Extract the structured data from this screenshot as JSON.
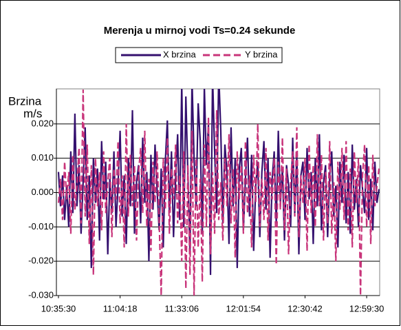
{
  "chart_data": {
    "type": "line",
    "title": "Merenja u mirnoj vodi Ts=0.24 sekunde",
    "y_label": [
      "Brzina",
      "m/s"
    ],
    "categories": [
      "10:35:30",
      null,
      null,
      null,
      null,
      null,
      null,
      null,
      null,
      null,
      null,
      null,
      null,
      null,
      null,
      null,
      null,
      null,
      null,
      null,
      null,
      null,
      null,
      null,
      null,
      null,
      null,
      null,
      null,
      null,
      "11:04:18",
      null,
      null,
      null,
      null,
      null,
      null,
      null,
      null,
      null,
      null,
      null,
      null,
      null,
      null,
      null,
      null,
      null,
      null,
      null,
      null,
      null,
      null,
      null,
      null,
      null,
      null,
      null,
      null,
      null,
      "11:33:06",
      null,
      null,
      null,
      null,
      null,
      null,
      null,
      null,
      null,
      null,
      null,
      null,
      null,
      null,
      null,
      null,
      null,
      null,
      null,
      null,
      null,
      null,
      null,
      null,
      null,
      null,
      null,
      null,
      null,
      "12:01:54",
      null,
      null,
      null,
      null,
      null,
      null,
      null,
      null,
      null,
      null,
      null,
      null,
      null,
      null,
      null,
      null,
      null,
      null,
      null,
      null,
      null,
      null,
      null,
      null,
      null,
      null,
      null,
      null,
      null,
      "12:30:42",
      null,
      null,
      null,
      null,
      null,
      null,
      null,
      null,
      null,
      null,
      null,
      null,
      null,
      null,
      null,
      null,
      null,
      null,
      null,
      null,
      null,
      null,
      null,
      null,
      null,
      null,
      null,
      null,
      null,
      "12:59:30",
      null,
      null,
      null,
      null,
      null,
      null
    ],
    "series": [
      {
        "name": "X brzina",
        "color": "#34106e",
        "dash": false,
        "values": [
          0.006,
          -0.004,
          0.005,
          -0.008,
          0.002,
          -0.01,
          0.012,
          -0.006,
          0.023,
          -0.004,
          0.008,
          -0.012,
          0.003,
          0.019,
          -0.008,
          0.005,
          -0.022,
          0.01,
          -0.003,
          0.007,
          -0.014,
          0.015,
          -0.002,
          0.009,
          -0.018,
          0.004,
          -0.006,
          0.012,
          -0.01,
          0.002,
          0.018,
          -0.007,
          0.005,
          -0.015,
          0.01,
          -0.004,
          0.024,
          -0.012,
          0.003,
          0.008,
          -0.009,
          0.016,
          -0.003,
          0.006,
          -0.02,
          0.011,
          -0.005,
          0.014,
          0.001,
          -0.011,
          0.007,
          -0.016,
          0.009,
          0.021,
          -0.006,
          0.012,
          -0.013,
          0.004,
          0.017,
          -0.008,
          0.032,
          -0.01,
          0.028,
          0.005,
          -0.018,
          0.033,
          0.01,
          -0.004,
          0.026,
          0.015,
          -0.012,
          0.031,
          0.008,
          0.02,
          -0.024,
          0.034,
          0.012,
          -0.006,
          0.035,
          0.018,
          -0.009,
          0.014,
          0.006,
          -0.015,
          0.019,
          -0.004,
          0.01,
          -0.022,
          0.007,
          0.013,
          -0.011,
          0.004,
          0.016,
          -0.007,
          0.011,
          -0.017,
          0.002,
          0.009,
          -0.013,
          0.006,
          0.015,
          -0.005,
          0.01,
          -0.019,
          0.004,
          0.012,
          -0.009,
          0.018,
          -0.003,
          0.007,
          -0.014,
          0.008,
          0.002,
          -0.01,
          0.016,
          -0.006,
          0.011,
          -0.018,
          0.005,
          0.009,
          -0.008,
          0.013,
          -0.002,
          0.006,
          -0.015,
          0.01,
          -0.004,
          0.017,
          -0.011,
          0.003,
          0.008,
          -0.013,
          0.005,
          0.012,
          -0.007,
          0.002,
          -0.016,
          0.009,
          -0.003,
          0.011,
          -0.009,
          0.006,
          -0.012,
          0.014,
          -0.005,
          0.004,
          -0.01,
          0.008,
          0.001,
          -0.006,
          0.013,
          -0.008,
          0.004,
          -0.011,
          0.009,
          -0.003,
          0.001
        ]
      },
      {
        "name": "Y brzina",
        "color": "#c8347a",
        "dash": true,
        "values": [
          -0.003,
          0.004,
          -0.008,
          0.009,
          -0.002,
          0.006,
          -0.012,
          0.011,
          -0.005,
          0.002,
          0.013,
          -0.009,
          0.03,
          -0.007,
          0.014,
          -0.015,
          0.008,
          -0.024,
          0.01,
          -0.004,
          0.006,
          -0.011,
          0.012,
          -0.006,
          0.003,
          0.01,
          -0.013,
          0.007,
          -0.002,
          0.015,
          -0.009,
          0.005,
          -0.016,
          0.02,
          -0.007,
          0.011,
          -0.004,
          0.008,
          -0.014,
          0.006,
          0.013,
          -0.006,
          0.018,
          -0.01,
          0.004,
          -0.017,
          0.009,
          -0.003,
          0.012,
          -0.008,
          -0.03,
          0.01,
          -0.005,
          0.016,
          -0.012,
          0.007,
          -0.002,
          0.014,
          -0.009,
          0.005,
          -0.02,
          0.012,
          -0.028,
          0.008,
          -0.024,
          0.018,
          -0.03,
          0.01,
          -0.016,
          0.004,
          -0.026,
          0.014,
          -0.01,
          0.022,
          -0.018,
          0.006,
          -0.012,
          0.024,
          -0.008,
          0.003,
          -0.014,
          0.01,
          -0.004,
          0.017,
          -0.009,
          0.007,
          -0.019,
          0.012,
          -0.002,
          0.008,
          -0.012,
          0.015,
          -0.006,
          0.005,
          -0.016,
          0.011,
          -0.003,
          0.02,
          -0.01,
          0.004,
          -0.008,
          0.013,
          -0.014,
          0.006,
          -0.002,
          0.01,
          -0.021,
          0.009,
          -0.005,
          0.016,
          -0.011,
          0.007,
          -0.018,
          0.003,
          0.012,
          -0.007,
          0.019,
          -0.013,
          0.005,
          -0.003,
          0.01,
          -0.017,
          0.014,
          -0.006,
          0.008,
          -0.01,
          0.017,
          -0.004,
          0.011,
          -0.014,
          0.006,
          -0.009,
          0.015,
          -0.012,
          0.003,
          -0.02,
          0.009,
          -0.005,
          0.013,
          -0.008,
          0.015,
          -0.011,
          0.007,
          -0.016,
          0.012,
          -0.003,
          0.01,
          -0.03,
          0.005,
          0.014,
          -0.01,
          0.008,
          -0.015,
          0.011,
          -0.004,
          0.002,
          0.007
        ]
      }
    ],
    "ylim": [
      -0.03,
      0.03
    ],
    "yticks": [
      {
        "value": -0.03,
        "label": "-0.030"
      },
      {
        "value": -0.02,
        "label": "-0.020"
      },
      {
        "value": -0.01,
        "label": "-0.010"
      },
      {
        "value": 0,
        "label": "0.000"
      },
      {
        "value": 0.01,
        "label": "0.010"
      },
      {
        "value": 0.02,
        "label": "0.020"
      }
    ],
    "grid": true,
    "legend": "top"
  }
}
